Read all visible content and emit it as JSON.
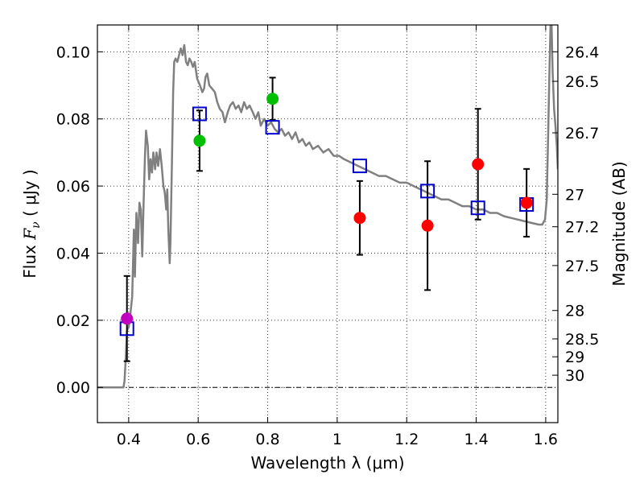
{
  "chart_data": {
    "type": "scatter",
    "xlabel": "Wavelength  λ (μm)",
    "ylabel": "Flux  F_ν  ( μJy )",
    "ylabel_parts": {
      "prefix": "Flux  ",
      "symbol": "F",
      "subscript": "ν",
      "suffix": "  ( μJy )"
    },
    "ylabel_right": "Magnitude (AB)",
    "xlim": [
      0.31,
      1.635
    ],
    "ylim": [
      -0.0105,
      0.108
    ],
    "grid": true,
    "x_ticks": [
      {
        "value": 0.4,
        "label": "0.4"
      },
      {
        "value": 0.6,
        "label": "0.6"
      },
      {
        "value": 0.8,
        "label": "0.8"
      },
      {
        "value": 1.0,
        "label": "1"
      },
      {
        "value": 1.2,
        "label": "1.2"
      },
      {
        "value": 1.4,
        "label": "1.4"
      },
      {
        "value": 1.6,
        "label": "1.6"
      }
    ],
    "y_ticks": [
      {
        "value": 0.0,
        "label": "0.00"
      },
      {
        "value": 0.02,
        "label": "0.02"
      },
      {
        "value": 0.04,
        "label": "0.04"
      },
      {
        "value": 0.06,
        "label": "0.06"
      },
      {
        "value": 0.08,
        "label": "0.08"
      },
      {
        "value": 0.1,
        "label": "0.10"
      }
    ],
    "mag_ticks": [
      {
        "value": 26.4,
        "label": "26.4"
      },
      {
        "value": 26.5,
        "label": "26.5"
      },
      {
        "value": 26.7,
        "label": "26.7"
      },
      {
        "value": 27.0,
        "label": "27"
      },
      {
        "value": 27.2,
        "label": "27.2"
      },
      {
        "value": 27.5,
        "label": "27.5"
      },
      {
        "value": 28.0,
        "label": "28"
      },
      {
        "value": 28.5,
        "label": "28.5"
      },
      {
        "value": 29.0,
        "label": "29"
      },
      {
        "value": 30.0,
        "label": "30"
      }
    ],
    "observed": [
      {
        "x": 0.395,
        "y": 0.0205,
        "yerr": 0.0127,
        "color": "#bf00bf"
      },
      {
        "x": 0.604,
        "y": 0.0735,
        "yerr": 0.009,
        "color": "#00bf00"
      },
      {
        "x": 0.814,
        "y": 0.086,
        "yerr": 0.0063,
        "color": "#00bf00"
      },
      {
        "x": 1.065,
        "y": 0.0505,
        "yerr": 0.011,
        "color": "#ff0000"
      },
      {
        "x": 1.26,
        "y": 0.0482,
        "yerr": 0.0192,
        "color": "#ff0000"
      },
      {
        "x": 1.405,
        "y": 0.0665,
        "yerr": 0.0165,
        "color": "#ff0000"
      },
      {
        "x": 1.545,
        "y": 0.055,
        "yerr": 0.0101,
        "color": "#ff0000"
      }
    ],
    "model_photometry": [
      {
        "x": 0.395,
        "y": 0.0175
      },
      {
        "x": 0.604,
        "y": 0.0815
      },
      {
        "x": 0.814,
        "y": 0.0775
      },
      {
        "x": 1.065,
        "y": 0.066
      },
      {
        "x": 1.26,
        "y": 0.0585
      },
      {
        "x": 1.405,
        "y": 0.0535
      },
      {
        "x": 1.545,
        "y": 0.0545
      }
    ],
    "sed_model": [
      [
        0.31,
        0.0
      ],
      [
        0.385,
        0.0
      ],
      [
        0.388,
        0.002
      ],
      [
        0.392,
        0.0095
      ],
      [
        0.395,
        0.017
      ],
      [
        0.4,
        0.018
      ],
      [
        0.405,
        0.022
      ],
      [
        0.41,
        0.027
      ],
      [
        0.415,
        0.047
      ],
      [
        0.418,
        0.033
      ],
      [
        0.422,
        0.052
      ],
      [
        0.427,
        0.043
      ],
      [
        0.431,
        0.055
      ],
      [
        0.435,
        0.053
      ],
      [
        0.439,
        0.039
      ],
      [
        0.443,
        0.055
      ],
      [
        0.447,
        0.069
      ],
      [
        0.45,
        0.0765
      ],
      [
        0.455,
        0.072
      ],
      [
        0.459,
        0.062
      ],
      [
        0.463,
        0.068
      ],
      [
        0.467,
        0.064
      ],
      [
        0.471,
        0.07
      ],
      [
        0.476,
        0.065
      ],
      [
        0.48,
        0.07
      ],
      [
        0.485,
        0.066
      ],
      [
        0.49,
        0.071
      ],
      [
        0.495,
        0.066
      ],
      [
        0.5,
        0.06
      ],
      [
        0.504,
        0.058
      ],
      [
        0.508,
        0.053
      ],
      [
        0.511,
        0.059
      ],
      [
        0.514,
        0.047
      ],
      [
        0.518,
        0.037
      ],
      [
        0.52,
        0.043
      ],
      [
        0.522,
        0.053
      ],
      [
        0.525,
        0.07
      ],
      [
        0.528,
        0.088
      ],
      [
        0.531,
        0.097
      ],
      [
        0.535,
        0.098
      ],
      [
        0.54,
        0.097
      ],
      [
        0.545,
        0.099
      ],
      [
        0.55,
        0.101
      ],
      [
        0.555,
        0.099
      ],
      [
        0.56,
        0.102
      ],
      [
        0.565,
        0.097
      ],
      [
        0.57,
        0.096
      ],
      [
        0.575,
        0.098
      ],
      [
        0.58,
        0.097
      ],
      [
        0.585,
        0.0955
      ],
      [
        0.59,
        0.097
      ],
      [
        0.597,
        0.092
      ],
      [
        0.605,
        0.09
      ],
      [
        0.612,
        0.088
      ],
      [
        0.617,
        0.089
      ],
      [
        0.621,
        0.0925
      ],
      [
        0.626,
        0.0935
      ],
      [
        0.632,
        0.09
      ],
      [
        0.64,
        0.089
      ],
      [
        0.648,
        0.088
      ],
      [
        0.655,
        0.085
      ],
      [
        0.662,
        0.083
      ],
      [
        0.67,
        0.082
      ],
      [
        0.677,
        0.079
      ],
      [
        0.685,
        0.082
      ],
      [
        0.692,
        0.084
      ],
      [
        0.7,
        0.085
      ],
      [
        0.708,
        0.083
      ],
      [
        0.716,
        0.084
      ],
      [
        0.724,
        0.082
      ],
      [
        0.732,
        0.085
      ],
      [
        0.74,
        0.083
      ],
      [
        0.748,
        0.084
      ],
      [
        0.757,
        0.082
      ],
      [
        0.765,
        0.08
      ],
      [
        0.773,
        0.082
      ],
      [
        0.78,
        0.078
      ],
      [
        0.79,
        0.08
      ],
      [
        0.8,
        0.078
      ],
      [
        0.81,
        0.079
      ],
      [
        0.82,
        0.077
      ],
      [
        0.83,
        0.076
      ],
      [
        0.84,
        0.077
      ],
      [
        0.85,
        0.075
      ],
      [
        0.86,
        0.076
      ],
      [
        0.87,
        0.074
      ],
      [
        0.88,
        0.076
      ],
      [
        0.89,
        0.073
      ],
      [
        0.9,
        0.074
      ],
      [
        0.91,
        0.072
      ],
      [
        0.92,
        0.073
      ],
      [
        0.93,
        0.071
      ],
      [
        0.945,
        0.072
      ],
      [
        0.96,
        0.07
      ],
      [
        0.975,
        0.071
      ],
      [
        0.99,
        0.069
      ],
      [
        1.005,
        0.069
      ],
      [
        1.02,
        0.068
      ],
      [
        1.04,
        0.067
      ],
      [
        1.06,
        0.066
      ],
      [
        1.08,
        0.065
      ],
      [
        1.1,
        0.064
      ],
      [
        1.12,
        0.063
      ],
      [
        1.14,
        0.063
      ],
      [
        1.16,
        0.062
      ],
      [
        1.18,
        0.061
      ],
      [
        1.2,
        0.061
      ],
      [
        1.22,
        0.06
      ],
      [
        1.24,
        0.059
      ],
      [
        1.26,
        0.058
      ],
      [
        1.28,
        0.057
      ],
      [
        1.3,
        0.056
      ],
      [
        1.32,
        0.056
      ],
      [
        1.34,
        0.055
      ],
      [
        1.36,
        0.054
      ],
      [
        1.38,
        0.054
      ],
      [
        1.4,
        0.053
      ],
      [
        1.42,
        0.053
      ],
      [
        1.44,
        0.052
      ],
      [
        1.46,
        0.052
      ],
      [
        1.48,
        0.051
      ],
      [
        1.5,
        0.0505
      ],
      [
        1.52,
        0.05
      ],
      [
        1.54,
        0.0495
      ],
      [
        1.56,
        0.049
      ],
      [
        1.58,
        0.0485
      ],
      [
        1.59,
        0.0485
      ],
      [
        1.598,
        0.05
      ],
      [
        1.603,
        0.056
      ],
      [
        1.607,
        0.075
      ],
      [
        1.611,
        0.095
      ],
      [
        1.614,
        0.108
      ],
      [
        1.617,
        0.108
      ],
      [
        1.62,
        0.094
      ],
      [
        1.624,
        0.083
      ],
      [
        1.628,
        0.078
      ],
      [
        1.632,
        0.072
      ],
      [
        1.635,
        0.065
      ]
    ]
  }
}
